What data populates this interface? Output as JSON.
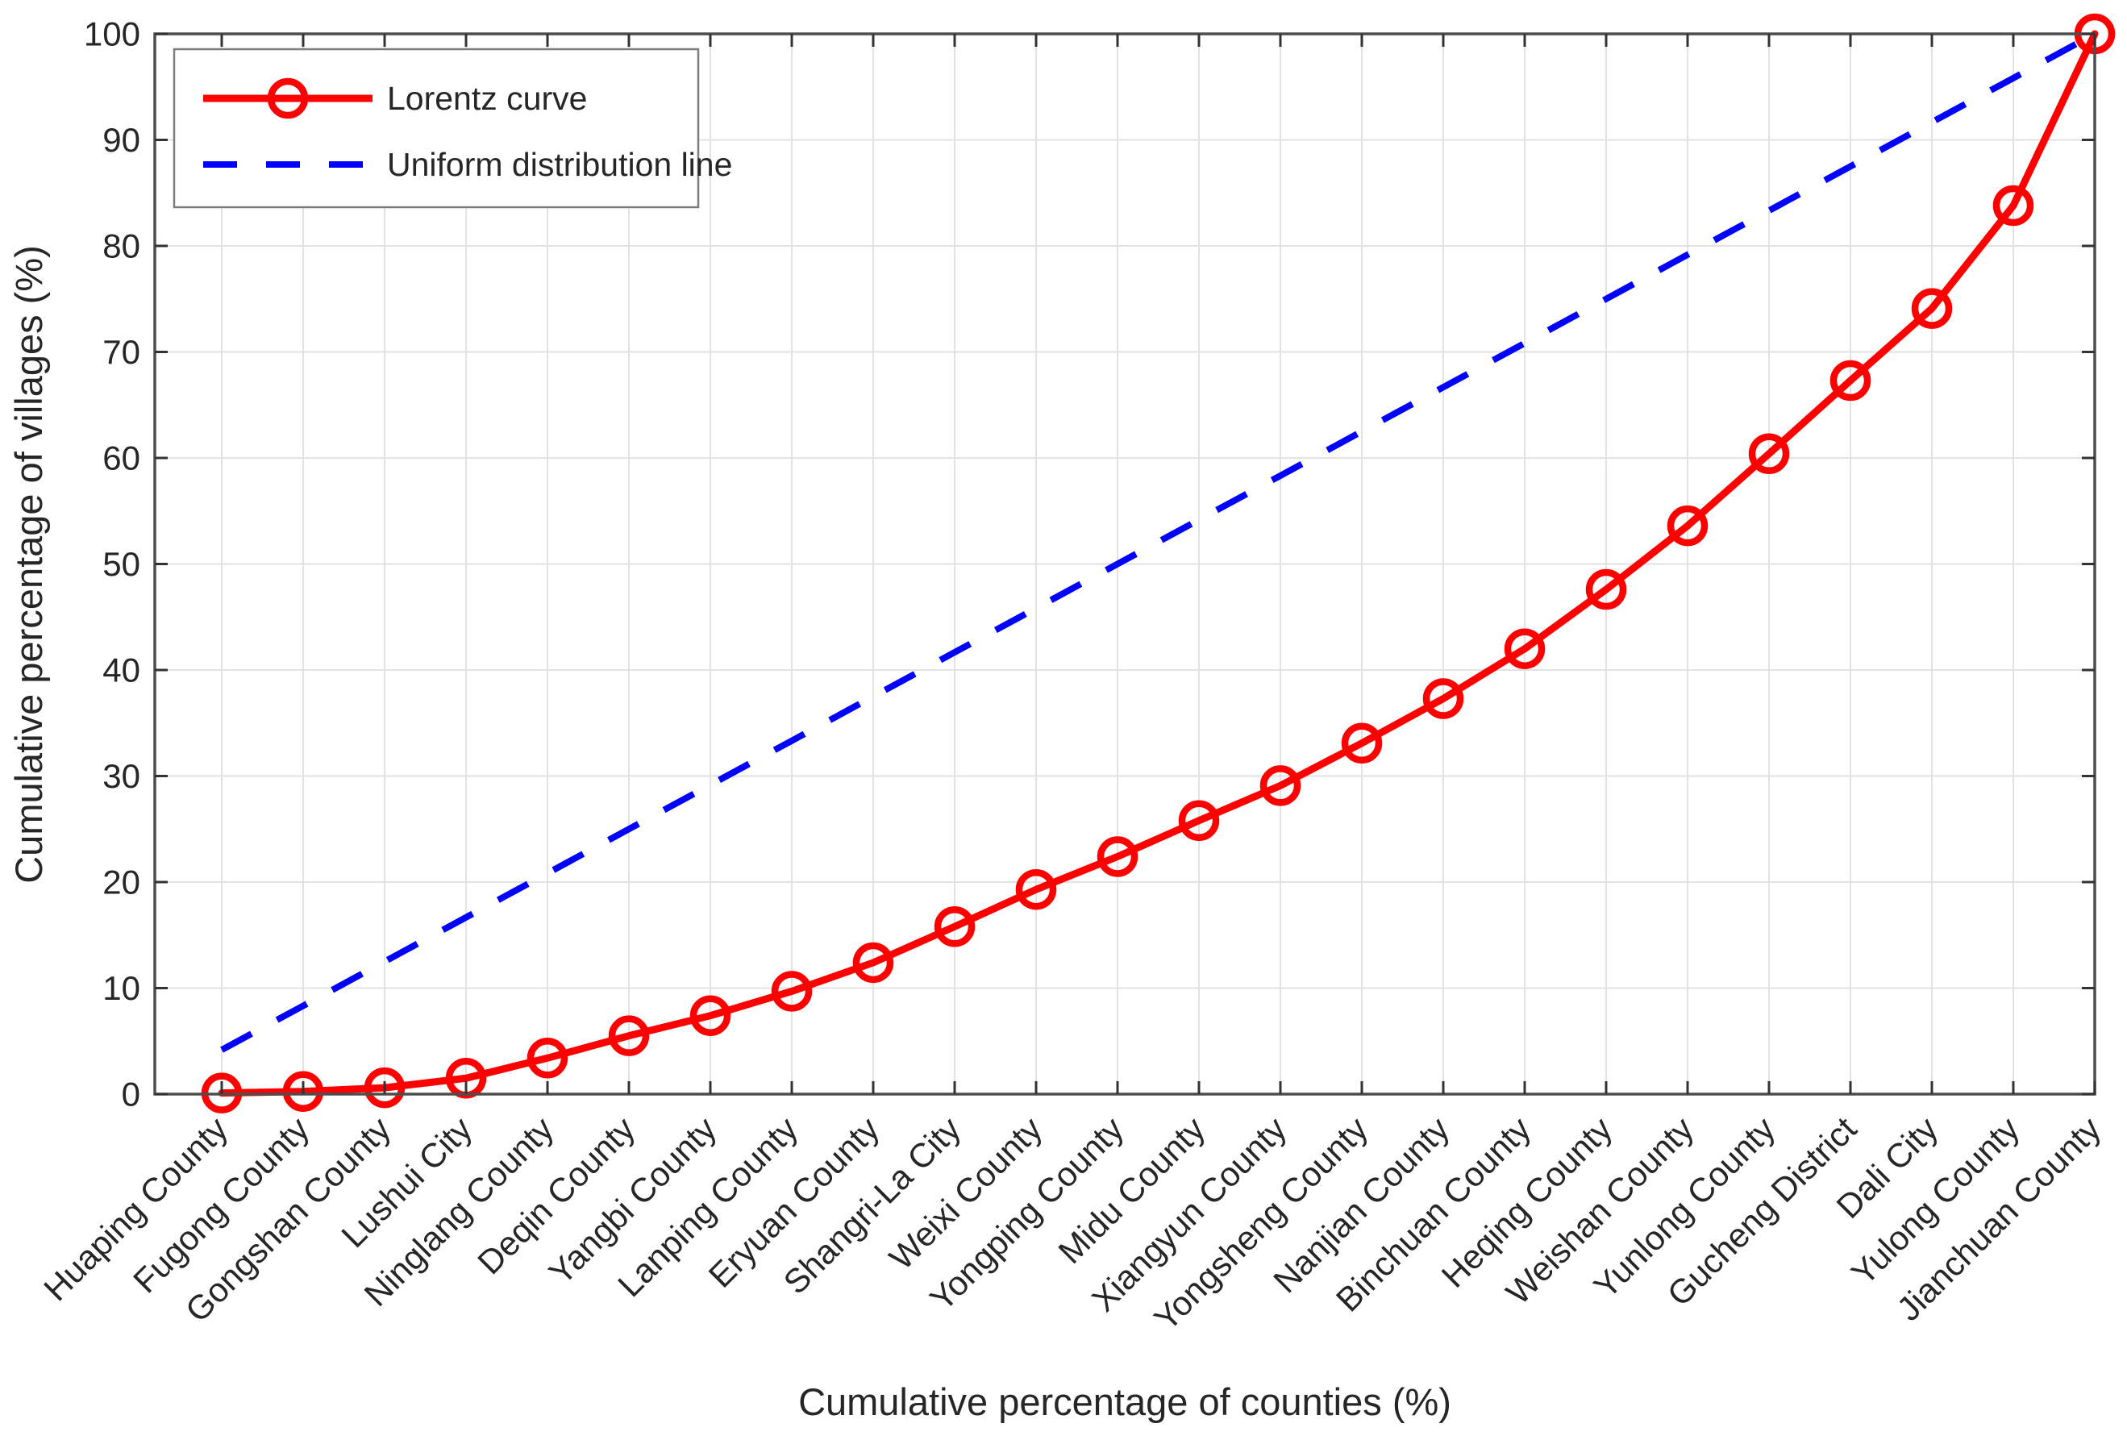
{
  "figure": {
    "xlabel": "Cumulative percentage of counties (%)",
    "ylabel": "Cumulative percentage of villages (%)"
  },
  "legend": {
    "items": [
      {
        "label": "Lorentz curve",
        "color": "#ff0000",
        "style": "solid-line-circle-marker"
      },
      {
        "label": "Uniform distribution line",
        "color": "#0000ff",
        "style": "dashed-line"
      }
    ]
  },
  "colors": {
    "lorentz": "#ff0000",
    "uniform": "#0000ff",
    "grid": "#e2e2e2",
    "axis_box": "#4d4d4d",
    "tick": "#333333",
    "text": "#262626",
    "legend_border": "#7d7d7d",
    "background": "#ffffff"
  },
  "chart_data": {
    "type": "line",
    "title": "",
    "xlabel": "Cumulative percentage of counties (%)",
    "ylabel": "Cumulative percentage of villages (%)",
    "ylim": [
      0,
      100
    ],
    "yticks": [
      0,
      10,
      20,
      30,
      40,
      50,
      60,
      70,
      80,
      90,
      100
    ],
    "grid": true,
    "legend_position": "top-left",
    "categories": [
      "Huaping County",
      "Fugong County",
      "Gongshan County",
      "Lushui City",
      "Ninglang County",
      "Deqin County",
      "Yangbi County",
      "Lanping County",
      "Eryuan County",
      "Shangri-La City",
      "Weixi County",
      "Yongping County",
      "Midu County",
      "Xiangyun County",
      "Yongsheng County",
      "Nanjian County",
      "Binchuan County",
      "Heqing County",
      "Weishan County",
      "Yunlong County",
      "Gucheng District",
      "Dali City",
      "Yulong County",
      "Jianchuan County"
    ],
    "series": [
      {
        "name": "Lorentz curve",
        "color": "#ff0000",
        "line": "solid",
        "marker": "circle",
        "values": [
          0.1,
          0.25,
          0.6,
          1.5,
          3.4,
          5.5,
          7.4,
          9.7,
          12.4,
          15.8,
          19.3,
          22.4,
          25.8,
          29.1,
          33.1,
          37.3,
          42.0,
          47.6,
          53.6,
          60.4,
          67.3,
          74.1,
          83.8,
          100
        ]
      },
      {
        "name": "Uniform distribution line",
        "color": "#0000ff",
        "line": "dashed",
        "marker": "none",
        "values": [
          4.17,
          8.33,
          12.5,
          16.67,
          20.83,
          25.0,
          29.17,
          33.33,
          37.5,
          41.67,
          45.83,
          50.0,
          54.17,
          58.33,
          62.5,
          66.67,
          70.83,
          75.0,
          79.17,
          83.33,
          87.5,
          91.67,
          95.83,
          100.0
        ]
      }
    ]
  }
}
